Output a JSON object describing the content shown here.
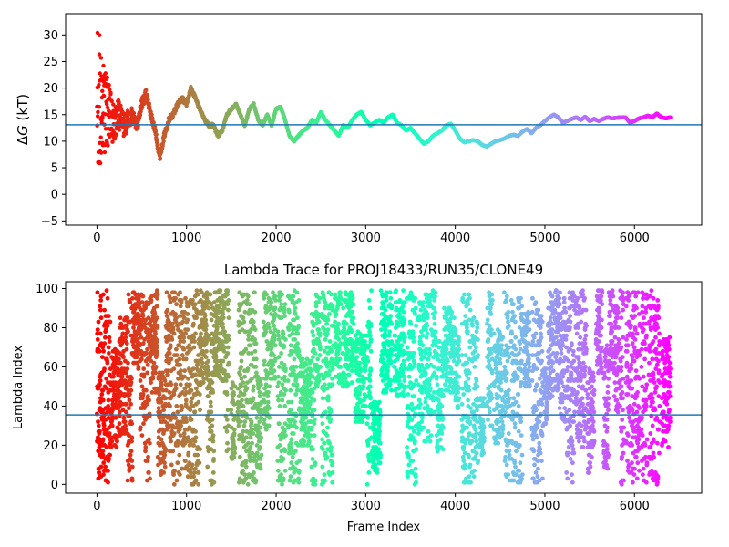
{
  "chart_data": [
    {
      "type": "scatter",
      "title": "",
      "xlabel": "",
      "ylabel": "ΔG (kT)",
      "ylabel_prefix": "Δ",
      "ylabel_italic": "G",
      "ylabel_suffix": " (kT)",
      "xlim": [
        -350,
        6750
      ],
      "ylim": [
        -5.8,
        34
      ],
      "xticks": [
        0,
        1000,
        2000,
        3000,
        4000,
        5000,
        6000
      ],
      "yticks": [
        -5,
        0,
        5,
        10,
        15,
        20,
        25,
        30
      ],
      "hline": 13.1,
      "hline_color": "#1f77b4",
      "colormap": "rainbow (frame index mapped from red at 0 to violet at 6400)",
      "n_frames": 6400,
      "trace_points": [
        [
          0,
          10
        ],
        [
          50,
          17
        ],
        [
          100,
          16
        ],
        [
          150,
          14
        ],
        [
          200,
          13
        ],
        [
          250,
          15
        ],
        [
          300,
          13
        ],
        [
          350,
          14
        ],
        [
          400,
          15
        ],
        [
          450,
          13
        ],
        [
          500,
          17
        ],
        [
          550,
          19
        ],
        [
          600,
          15
        ],
        [
          650,
          12
        ],
        [
          700,
          7
        ],
        [
          750,
          11
        ],
        [
          800,
          14
        ],
        [
          850,
          15
        ],
        [
          900,
          17
        ],
        [
          950,
          18
        ],
        [
          1000,
          17
        ],
        [
          1050,
          20
        ],
        [
          1100,
          18
        ],
        [
          1150,
          16
        ],
        [
          1200,
          14
        ],
        [
          1250,
          13
        ],
        [
          1300,
          13
        ],
        [
          1350,
          11
        ],
        [
          1400,
          12
        ],
        [
          1450,
          15
        ],
        [
          1500,
          16
        ],
        [
          1550,
          17
        ],
        [
          1600,
          15
        ],
        [
          1650,
          13
        ],
        [
          1700,
          16
        ],
        [
          1750,
          17
        ],
        [
          1800,
          14
        ],
        [
          1850,
          13
        ],
        [
          1900,
          15
        ],
        [
          1950,
          13
        ],
        [
          2000,
          16
        ],
        [
          2050,
          16.5
        ],
        [
          2100,
          14
        ],
        [
          2150,
          11
        ],
        [
          2200,
          10
        ],
        [
          2250,
          11
        ],
        [
          2300,
          12
        ],
        [
          2350,
          12.5
        ],
        [
          2400,
          14
        ],
        [
          2450,
          13.5
        ],
        [
          2500,
          15.5
        ],
        [
          2550,
          14
        ],
        [
          2600,
          13
        ],
        [
          2650,
          12
        ],
        [
          2700,
          11
        ],
        [
          2750,
          13
        ],
        [
          2800,
          12.5
        ],
        [
          2850,
          14
        ],
        [
          2900,
          15
        ],
        [
          2950,
          15.5
        ],
        [
          3000,
          14
        ],
        [
          3050,
          13
        ],
        [
          3100,
          13.5
        ],
        [
          3150,
          14
        ],
        [
          3200,
          13.5
        ],
        [
          3250,
          14.5
        ],
        [
          3300,
          15
        ],
        [
          3350,
          13.5
        ],
        [
          3400,
          13
        ],
        [
          3450,
          12
        ],
        [
          3500,
          12.5
        ],
        [
          3550,
          11.5
        ],
        [
          3600,
          10.5
        ],
        [
          3650,
          9.5
        ],
        [
          3700,
          10
        ],
        [
          3750,
          11
        ],
        [
          3800,
          11.5
        ],
        [
          3850,
          12
        ],
        [
          3900,
          13
        ],
        [
          3950,
          13.3
        ],
        [
          4000,
          12
        ],
        [
          4050,
          10.5
        ],
        [
          4100,
          9.8
        ],
        [
          4150,
          10
        ],
        [
          4200,
          10.2
        ],
        [
          4250,
          10
        ],
        [
          4300,
          9.3
        ],
        [
          4350,
          9
        ],
        [
          4400,
          9.5
        ],
        [
          4450,
          10
        ],
        [
          4500,
          10.2
        ],
        [
          4550,
          10.5
        ],
        [
          4600,
          11
        ],
        [
          4650,
          11.2
        ],
        [
          4700,
          11
        ],
        [
          4750,
          11.8
        ],
        [
          4800,
          12.3
        ],
        [
          4850,
          11.5
        ],
        [
          4900,
          12.5
        ],
        [
          4950,
          13
        ],
        [
          5000,
          13.8
        ],
        [
          5050,
          14.5
        ],
        [
          5100,
          15
        ],
        [
          5150,
          14.5
        ],
        [
          5200,
          13.5
        ],
        [
          5250,
          13.8
        ],
        [
          5300,
          14.2
        ],
        [
          5350,
          14.5
        ],
        [
          5400,
          14
        ],
        [
          5450,
          14.6
        ],
        [
          5500,
          13.8
        ],
        [
          5550,
          14.2
        ],
        [
          5600,
          13.8
        ],
        [
          5650,
          14.2
        ],
        [
          5700,
          14.5
        ],
        [
          5750,
          14.3
        ],
        [
          5800,
          14.4
        ],
        [
          5850,
          14.5
        ],
        [
          5900,
          14.5
        ],
        [
          5950,
          13.5
        ],
        [
          6000,
          13.8
        ],
        [
          6050,
          14.3
        ],
        [
          6100,
          14.5
        ],
        [
          6150,
          14.8
        ],
        [
          6200,
          14.5
        ],
        [
          6250,
          15.2
        ],
        [
          6300,
          14.5
        ],
        [
          6350,
          14.3
        ],
        [
          6400,
          14.5
        ]
      ]
    },
    {
      "type": "scatter",
      "title": "Lambda Trace for PROJ18433/RUN35/CLONE49",
      "xlabel": "Frame Index",
      "ylabel": "Lambda Index",
      "xlim": [
        -350,
        6750
      ],
      "ylim": [
        -4.5,
        103.5
      ],
      "xticks": [
        0,
        1000,
        2000,
        3000,
        4000,
        5000,
        6000
      ],
      "yticks": [
        0,
        20,
        40,
        60,
        80,
        100
      ],
      "hline": 35.5,
      "hline_color": "#1f77b4",
      "colormap": "rainbow (frame index mapped from red at 0 to violet at 6400)",
      "n_frames": 6400,
      "lambda_range": [
        0,
        99
      ]
    }
  ]
}
